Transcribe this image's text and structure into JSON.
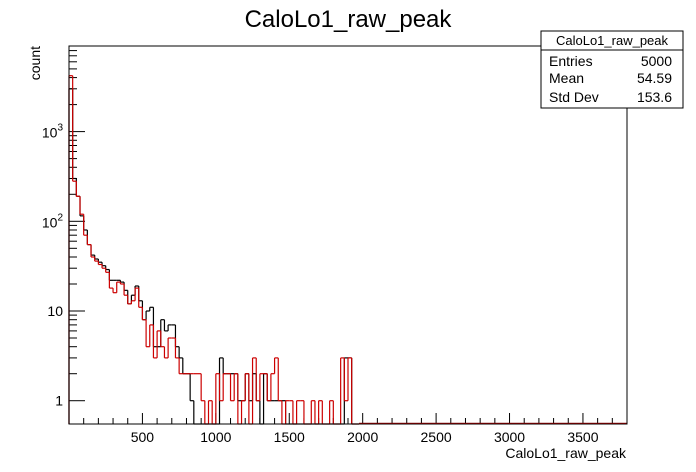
{
  "chart_data": {
    "type": "histogram",
    "title": "CaloLo1_raw_peak",
    "xlabel": "CaloLo1_raw_peak",
    "ylabel": "count",
    "xlim": [
      0,
      3800
    ],
    "ylim": [
      0.55,
      9000
    ],
    "yscale": "log",
    "grid": false,
    "bin_width": 25,
    "x_ticks": [
      500,
      1000,
      1500,
      2000,
      2500,
      3000,
      3500
    ],
    "y_ticks": [
      {
        "value": 1,
        "label": "1"
      },
      {
        "value": 10,
        "label": "10"
      },
      {
        "value": 100,
        "label": "10",
        "exponent": "2"
      },
      {
        "value": 1000,
        "label": "10",
        "exponent": "3"
      }
    ],
    "series": [
      {
        "color": "#000000",
        "bin_starts": [
          0,
          25,
          50,
          75,
          100,
          125,
          150,
          175,
          200,
          225,
          250,
          275,
          300,
          325,
          350,
          375,
          400,
          425,
          450,
          475,
          500,
          525,
          550,
          575,
          600,
          625,
          650,
          675,
          700,
          725,
          750,
          775,
          800,
          825,
          850,
          875,
          900,
          925,
          950,
          975,
          1000,
          1025,
          1050,
          1075,
          1100,
          1125,
          1150,
          1175,
          1200,
          1225,
          1250,
          1275,
          1300,
          1325,
          1350,
          1375,
          1400,
          1425,
          1450,
          1475,
          1500,
          1525,
          1550,
          1575,
          1600,
          1625,
          1650,
          1675,
          1700,
          1725,
          1750,
          1775,
          1800,
          1825,
          1850,
          1875,
          1900,
          1925,
          1950
        ],
        "values": [
          3000,
          300,
          190,
          115,
          80,
          55,
          42,
          38,
          35,
          32,
          29,
          22,
          22,
          22,
          21,
          17,
          12,
          15,
          19,
          13,
          8,
          10,
          11,
          4,
          4,
          8,
          6,
          7,
          7,
          4,
          3,
          2,
          2,
          1,
          0,
          0,
          0,
          0,
          0,
          0,
          0,
          3,
          2,
          2,
          2,
          2,
          1,
          1,
          2,
          1,
          2,
          1,
          0,
          2,
          1,
          1,
          1,
          1,
          1,
          0,
          0,
          0,
          0,
          0,
          0,
          0,
          0,
          0,
          0,
          0,
          0,
          0,
          0,
          0,
          0,
          3,
          3,
          0,
          0
        ]
      },
      {
        "color": "#cc0000",
        "bin_starts": [
          0,
          25,
          50,
          75,
          100,
          125,
          150,
          175,
          200,
          225,
          250,
          275,
          300,
          325,
          350,
          375,
          400,
          425,
          450,
          475,
          500,
          525,
          550,
          575,
          600,
          625,
          650,
          675,
          700,
          725,
          750,
          775,
          800,
          825,
          850,
          875,
          900,
          925,
          950,
          975,
          1000,
          1025,
          1050,
          1075,
          1100,
          1125,
          1150,
          1175,
          1200,
          1225,
          1250,
          1275,
          1300,
          1325,
          1350,
          1375,
          1400,
          1425,
          1450,
          1475,
          1500,
          1525,
          1550,
          1575,
          1600,
          1625,
          1650,
          1675,
          1700,
          1725,
          1750,
          1775,
          1800,
          1825,
          1850,
          1875,
          1900,
          1925,
          1950
        ],
        "values": [
          4200,
          280,
          190,
          120,
          70,
          55,
          40,
          36,
          33,
          30,
          27,
          18,
          16,
          21,
          20,
          15,
          12,
          13,
          18,
          11,
          8,
          4,
          7,
          3,
          6,
          4,
          3,
          5,
          5,
          3,
          2,
          2,
          2,
          2,
          2,
          2,
          1,
          0,
          1,
          0,
          2,
          1,
          2,
          2,
          1,
          2,
          0,
          1,
          2,
          0,
          3,
          1,
          2,
          2,
          1,
          2,
          3,
          1,
          0,
          1,
          1,
          0,
          1,
          1,
          0,
          0,
          1,
          0,
          1,
          0,
          0,
          1,
          0,
          0,
          3,
          1,
          3,
          0,
          0
        ]
      }
    ]
  },
  "stats_box": {
    "title": "CaloLo1_raw_peak",
    "rows": [
      {
        "label": "Entries",
        "value": "5000"
      },
      {
        "label": "Mean",
        "value": "54.59"
      },
      {
        "label": "Std Dev",
        "value": "153.6"
      }
    ]
  }
}
